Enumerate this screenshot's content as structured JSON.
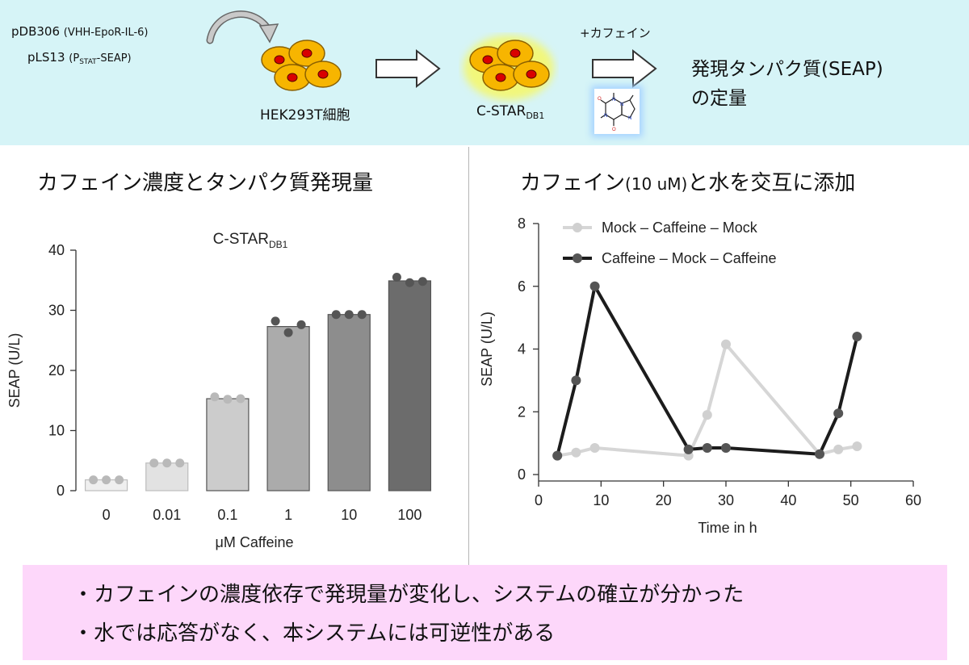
{
  "workflow": {
    "plasmid1_name": "pDB306",
    "plasmid1_desc": "(VHH-EpoR-IL-6)",
    "plasmid2_name": "pLS13",
    "plasmid2_p": "(P",
    "plasmid2_sub": "STAT",
    "plasmid2_rest": "-SEAP)",
    "cell_label": "HEK293T細胞",
    "cstar_label": "C-STAR",
    "cstar_sub": "DB1",
    "caffeine_add": "+カフェイン",
    "result_line1": "発現タンパク質(SEAP)",
    "result_line2": "の定量"
  },
  "left_title": "カフェイン濃度とタンパク質発現量",
  "right_title_a": "カフェイン",
  "right_title_b": "(10 uM)",
  "right_title_c": "と水を交互に添加",
  "colors": {
    "top_band": "#d6f4f7",
    "bottom_band": "#fdd7fa",
    "cell_fill": "#f7b500",
    "nucleus": "#d90000"
  },
  "chart_data": [
    {
      "type": "bar",
      "title": "C-STAR",
      "title_sub": "DB1",
      "xlabel": "μM Caffeine",
      "ylabel": "SEAP (U/L)",
      "categories": [
        "0",
        "0.01",
        "0.1",
        "1",
        "10",
        "100"
      ],
      "values": [
        1.8,
        4.6,
        15.3,
        27.3,
        29.3,
        34.9
      ],
      "points": [
        [
          1.8,
          1.8,
          1.8
        ],
        [
          4.6,
          4.6,
          4.6
        ],
        [
          15.6,
          15.2,
          15.3
        ],
        [
          28.2,
          26.3,
          27.6
        ],
        [
          29.3,
          29.3,
          29.3
        ],
        [
          35.5,
          34.6,
          34.8
        ]
      ],
      "bar_colors": [
        "#efefef",
        "#e2e2e2",
        "#cccccc",
        "#ababab",
        "#8d8d8d",
        "#6c6c6c"
      ],
      "yticks": [
        0,
        10,
        20,
        30,
        40
      ],
      "ylim": [
        0,
        40
      ]
    },
    {
      "type": "line",
      "xlabel": "Time in h",
      "ylabel": "SEAP (U/L)",
      "xticks": [
        0,
        10,
        20,
        30,
        40,
        50,
        60
      ],
      "yticks": [
        0,
        2,
        4,
        6,
        8
      ],
      "xlim": [
        0,
        60
      ],
      "ylim": [
        0,
        8
      ],
      "legend_position": "top-left",
      "series": [
        {
          "name": "Mock – Caffeine – Mock",
          "color": "#d6d6d6",
          "marker": "#d0d0d0",
          "x": [
            3,
            6,
            9,
            24,
            27,
            30,
            45,
            48,
            51
          ],
          "y": [
            0.6,
            0.7,
            0.85,
            0.6,
            1.9,
            4.15,
            0.65,
            0.8,
            0.9
          ]
        },
        {
          "name": "Caffeine – Mock – Caffeine",
          "color": "#1c1c1c",
          "marker": "#555555",
          "x": [
            3,
            6,
            9,
            24,
            27,
            30,
            45,
            48,
            51
          ],
          "y": [
            0.6,
            3.0,
            6.0,
            0.8,
            0.85,
            0.85,
            0.65,
            1.95,
            4.4
          ]
        }
      ]
    }
  ],
  "conclusions": [
    "・カフェインの濃度依存で発現量が変化し、システムの確立が分かった",
    "・水では応答がなく、本システムには可逆性がある"
  ]
}
